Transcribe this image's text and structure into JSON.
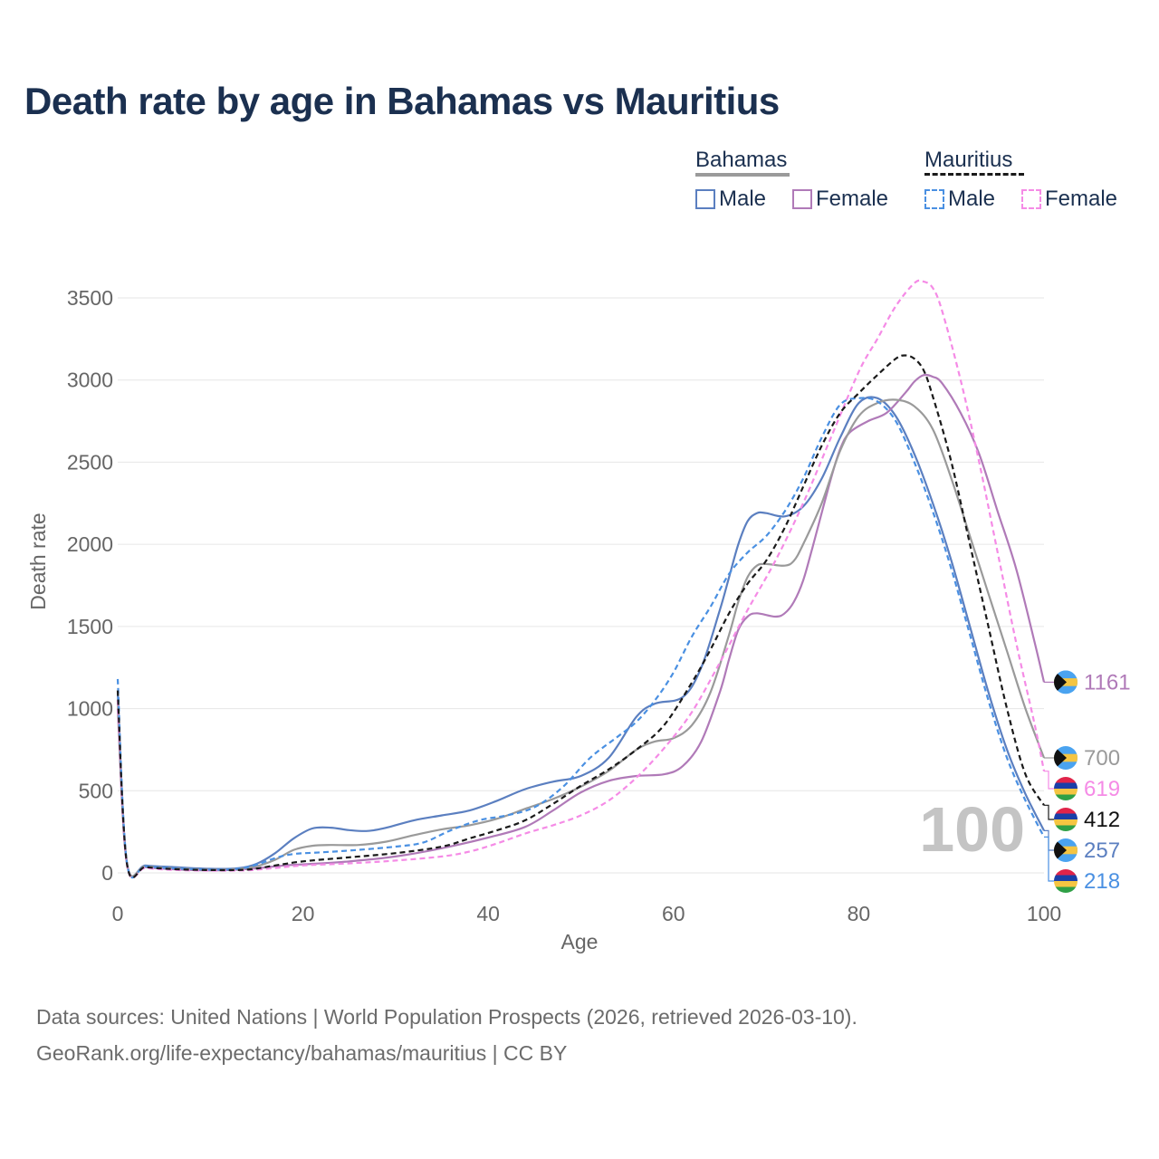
{
  "title": "Death rate by age in Bahamas vs Mauritius",
  "legend": {
    "bahamas": {
      "heading": "Bahamas",
      "male": "Male",
      "female": "Female"
    },
    "mauritius": {
      "heading": "Mauritius",
      "male": "Male",
      "female": "Female"
    }
  },
  "current_age_label": "100",
  "footer": {
    "line1": "Data sources: United Nations | World Population Prospects (2026, retrieved 2026-03-10).",
    "line2": "GeoRank.org/life-expectancy/bahamas/mauritius | CC BY"
  },
  "colors": {
    "bahamas_male": "#5b7fc0",
    "bahamas_female": "#b07ab8",
    "bahamas_total": "#9a9a9a",
    "mauritius_male": "#4a90e2",
    "mauritius_female": "#f58be6",
    "mauritius_total": "#1a1a1a",
    "title": "#1b3050"
  },
  "chart_data": {
    "type": "line",
    "title": "Death rate by age in Bahamas vs Mauritius",
    "xlabel": "Age",
    "ylabel": "Death rate",
    "xlim": [
      0,
      100
    ],
    "ylim": [
      0,
      3500
    ],
    "xticks": [
      0,
      20,
      40,
      60,
      80,
      100
    ],
    "yticks": [
      0,
      500,
      1000,
      1500,
      2000,
      2500,
      3000,
      3500
    ],
    "grid": true,
    "series": [
      {
        "name": "Bahamas Male",
        "country": "Bahamas",
        "style": "solid",
        "color": "#5b7fc0",
        "end_label": "257",
        "points": [
          [
            0,
            1100
          ],
          [
            1,
            60
          ],
          [
            3,
            45
          ],
          [
            6,
            35
          ],
          [
            10,
            25
          ],
          [
            13,
            28
          ],
          [
            15,
            55
          ],
          [
            17,
            120
          ],
          [
            19,
            210
          ],
          [
            21,
            270
          ],
          [
            23,
            275
          ],
          [
            25,
            260
          ],
          [
            27,
            255
          ],
          [
            29,
            275
          ],
          [
            32,
            320
          ],
          [
            35,
            350
          ],
          [
            38,
            380
          ],
          [
            41,
            440
          ],
          [
            44,
            510
          ],
          [
            47,
            555
          ],
          [
            50,
            590
          ],
          [
            53,
            700
          ],
          [
            56,
            950
          ],
          [
            58,
            1030
          ],
          [
            61,
            1070
          ],
          [
            63,
            1250
          ],
          [
            65,
            1600
          ],
          [
            66,
            1800
          ],
          [
            67,
            2000
          ],
          [
            68,
            2140
          ],
          [
            69,
            2190
          ],
          [
            70,
            2190
          ],
          [
            72,
            2170
          ],
          [
            74,
            2230
          ],
          [
            76,
            2400
          ],
          [
            78,
            2650
          ],
          [
            80,
            2860
          ],
          [
            82,
            2890
          ],
          [
            84,
            2780
          ],
          [
            86,
            2550
          ],
          [
            88,
            2250
          ],
          [
            90,
            1900
          ],
          [
            92,
            1500
          ],
          [
            94,
            1100
          ],
          [
            96,
            750
          ],
          [
            98,
            480
          ],
          [
            100,
            257
          ]
        ]
      },
      {
        "name": "Bahamas Female",
        "country": "Bahamas",
        "style": "solid",
        "color": "#b07ab8",
        "end_label": "1161",
        "points": [
          [
            0,
            1000
          ],
          [
            1,
            55
          ],
          [
            3,
            35
          ],
          [
            6,
            22
          ],
          [
            10,
            15
          ],
          [
            13,
            20
          ],
          [
            15,
            28
          ],
          [
            18,
            45
          ],
          [
            21,
            55
          ],
          [
            25,
            70
          ],
          [
            30,
            100
          ],
          [
            35,
            150
          ],
          [
            40,
            215
          ],
          [
            44,
            280
          ],
          [
            47,
            380
          ],
          [
            50,
            490
          ],
          [
            53,
            560
          ],
          [
            56,
            590
          ],
          [
            59,
            600
          ],
          [
            61,
            650
          ],
          [
            63,
            800
          ],
          [
            65,
            1100
          ],
          [
            66,
            1300
          ],
          [
            67,
            1480
          ],
          [
            68,
            1560
          ],
          [
            69,
            1580
          ],
          [
            71,
            1560
          ],
          [
            72,
            1580
          ],
          [
            73,
            1650
          ],
          [
            74,
            1780
          ],
          [
            75,
            1980
          ],
          [
            77,
            2400
          ],
          [
            78,
            2580
          ],
          [
            79,
            2680
          ],
          [
            81,
            2750
          ],
          [
            83,
            2800
          ],
          [
            85,
            2920
          ],
          [
            86,
            2990
          ],
          [
            87,
            3030
          ],
          [
            88,
            3020
          ],
          [
            89,
            2980
          ],
          [
            91,
            2800
          ],
          [
            93,
            2550
          ],
          [
            95,
            2200
          ],
          [
            97,
            1850
          ],
          [
            99,
            1400
          ],
          [
            100,
            1161
          ]
        ]
      },
      {
        "name": "Bahamas Total",
        "country": "Bahamas",
        "style": "solid",
        "color": "#9a9a9a",
        "end_label": "700",
        "points": [
          [
            0,
            1050
          ],
          [
            1,
            58
          ],
          [
            3,
            40
          ],
          [
            6,
            28
          ],
          [
            10,
            20
          ],
          [
            13,
            24
          ],
          [
            15,
            40
          ],
          [
            17,
            80
          ],
          [
            19,
            140
          ],
          [
            21,
            165
          ],
          [
            23,
            170
          ],
          [
            26,
            170
          ],
          [
            29,
            190
          ],
          [
            32,
            230
          ],
          [
            35,
            265
          ],
          [
            38,
            290
          ],
          [
            41,
            330
          ],
          [
            44,
            390
          ],
          [
            47,
            450
          ],
          [
            50,
            525
          ],
          [
            53,
            620
          ],
          [
            56,
            750
          ],
          [
            58,
            800
          ],
          [
            60,
            820
          ],
          [
            62,
            900
          ],
          [
            64,
            1100
          ],
          [
            66,
            1450
          ],
          [
            67,
            1650
          ],
          [
            68,
            1800
          ],
          [
            69,
            1870
          ],
          [
            70,
            1880
          ],
          [
            72,
            1870
          ],
          [
            73,
            1900
          ],
          [
            74,
            2000
          ],
          [
            76,
            2250
          ],
          [
            78,
            2570
          ],
          [
            80,
            2780
          ],
          [
            82,
            2860
          ],
          [
            84,
            2880
          ],
          [
            86,
            2840
          ],
          [
            88,
            2700
          ],
          [
            90,
            2400
          ],
          [
            92,
            2050
          ],
          [
            94,
            1700
          ],
          [
            96,
            1350
          ],
          [
            98,
            1000
          ],
          [
            100,
            700
          ]
        ]
      },
      {
        "name": "Mauritius Male",
        "country": "Mauritius",
        "style": "dashed",
        "color": "#4a90e2",
        "end_label": "218",
        "points": [
          [
            0,
            1180
          ],
          [
            1,
            60
          ],
          [
            3,
            40
          ],
          [
            6,
            28
          ],
          [
            10,
            20
          ],
          [
            13,
            25
          ],
          [
            15,
            50
          ],
          [
            17,
            90
          ],
          [
            19,
            115
          ],
          [
            22,
            125
          ],
          [
            26,
            140
          ],
          [
            30,
            160
          ],
          [
            33,
            185
          ],
          [
            36,
            260
          ],
          [
            39,
            320
          ],
          [
            42,
            350
          ],
          [
            45,
            400
          ],
          [
            48,
            520
          ],
          [
            51,
            700
          ],
          [
            54,
            830
          ],
          [
            56,
            920
          ],
          [
            58,
            1050
          ],
          [
            60,
            1220
          ],
          [
            62,
            1440
          ],
          [
            64,
            1620
          ],
          [
            66,
            1820
          ],
          [
            68,
            1950
          ],
          [
            70,
            2050
          ],
          [
            72,
            2200
          ],
          [
            74,
            2400
          ],
          [
            76,
            2650
          ],
          [
            78,
            2850
          ],
          [
            80,
            2890
          ],
          [
            82,
            2870
          ],
          [
            84,
            2750
          ],
          [
            86,
            2500
          ],
          [
            88,
            2200
          ],
          [
            90,
            1850
          ],
          [
            92,
            1450
          ],
          [
            94,
            1050
          ],
          [
            96,
            700
          ],
          [
            98,
            440
          ],
          [
            100,
            218
          ]
        ]
      },
      {
        "name": "Mauritius Female",
        "country": "Mauritius",
        "style": "dashed",
        "color": "#f58be6",
        "end_label": "619",
        "points": [
          [
            0,
            1050
          ],
          [
            1,
            50
          ],
          [
            3,
            30
          ],
          [
            6,
            18
          ],
          [
            10,
            14
          ],
          [
            14,
            16
          ],
          [
            17,
            30
          ],
          [
            20,
            45
          ],
          [
            25,
            58
          ],
          [
            30,
            75
          ],
          [
            35,
            100
          ],
          [
            38,
            130
          ],
          [
            41,
            180
          ],
          [
            44,
            240
          ],
          [
            47,
            290
          ],
          [
            50,
            350
          ],
          [
            53,
            440
          ],
          [
            56,
            580
          ],
          [
            59,
            760
          ],
          [
            62,
            980
          ],
          [
            65,
            1280
          ],
          [
            68,
            1600
          ],
          [
            71,
            1900
          ],
          [
            74,
            2250
          ],
          [
            77,
            2650
          ],
          [
            80,
            3050
          ],
          [
            82,
            3250
          ],
          [
            84,
            3450
          ],
          [
            86,
            3590
          ],
          [
            87,
            3600
          ],
          [
            88,
            3560
          ],
          [
            89,
            3420
          ],
          [
            91,
            3000
          ],
          [
            93,
            2500
          ],
          [
            95,
            1950
          ],
          [
            97,
            1400
          ],
          [
            99,
            900
          ],
          [
            100,
            619
          ]
        ]
      },
      {
        "name": "Mauritius Total",
        "country": "Mauritius",
        "style": "dashed",
        "color": "#1a1a1a",
        "end_label": "412",
        "points": [
          [
            0,
            1110
          ],
          [
            1,
            55
          ],
          [
            3,
            35
          ],
          [
            6,
            23
          ],
          [
            10,
            17
          ],
          [
            14,
            20
          ],
          [
            17,
            45
          ],
          [
            20,
            70
          ],
          [
            25,
            95
          ],
          [
            30,
            120
          ],
          [
            35,
            160
          ],
          [
            38,
            210
          ],
          [
            41,
            260
          ],
          [
            44,
            320
          ],
          [
            47,
            420
          ],
          [
            50,
            530
          ],
          [
            53,
            630
          ],
          [
            56,
            750
          ],
          [
            59,
            900
          ],
          [
            62,
            1160
          ],
          [
            64,
            1360
          ],
          [
            66,
            1580
          ],
          [
            68,
            1760
          ],
          [
            70,
            1900
          ],
          [
            72,
            2100
          ],
          [
            74,
            2350
          ],
          [
            76,
            2600
          ],
          [
            78,
            2800
          ],
          [
            80,
            2920
          ],
          [
            82,
            3030
          ],
          [
            84,
            3130
          ],
          [
            85,
            3150
          ],
          [
            86,
            3130
          ],
          [
            87,
            3060
          ],
          [
            88,
            2900
          ],
          [
            90,
            2500
          ],
          [
            92,
            2000
          ],
          [
            94,
            1500
          ],
          [
            96,
            1000
          ],
          [
            98,
            600
          ],
          [
            100,
            412
          ]
        ]
      }
    ]
  }
}
